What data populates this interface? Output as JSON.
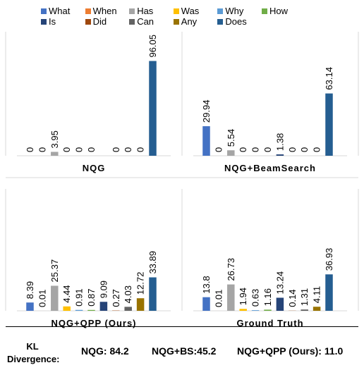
{
  "legend": {
    "items": [
      {
        "name": "What",
        "color": "#4472C4"
      },
      {
        "name": "When",
        "color": "#ED7D31"
      },
      {
        "name": "Has",
        "color": "#A5A5A5"
      },
      {
        "name": "Was",
        "color": "#FFC000"
      },
      {
        "name": "Why",
        "color": "#5B9BD5"
      },
      {
        "name": "How",
        "color": "#70AD47"
      },
      {
        "name": "Is",
        "color": "#264478"
      },
      {
        "name": "Did",
        "color": "#9E480E"
      },
      {
        "name": "Can",
        "color": "#636363"
      },
      {
        "name": "Any",
        "color": "#997300"
      },
      {
        "name": "Does",
        "color": "#255E91"
      }
    ]
  },
  "chart_data": [
    {
      "type": "bar",
      "title": "NQG",
      "categories": [
        "What",
        "When",
        "Has",
        "Was",
        "Why",
        "How",
        "Is",
        "Did",
        "Can",
        "Any",
        "Does"
      ],
      "values": [
        0,
        0,
        3.95,
        0,
        0,
        0,
        0,
        0,
        0,
        0,
        96.05
      ],
      "labels": [
        "0",
        "0",
        "3.95",
        "0",
        "0",
        "0",
        "0",
        "0",
        "0",
        "0",
        "96.05"
      ],
      "hidden_labels": [
        6
      ]
    },
    {
      "type": "bar",
      "title": "NQG+BeamSearch",
      "categories": [
        "What",
        "When",
        "Has",
        "Was",
        "Why",
        "How",
        "Is",
        "Did",
        "Can",
        "Any",
        "Does"
      ],
      "values": [
        29.94,
        0,
        5.54,
        0,
        0,
        0,
        1.38,
        0,
        0,
        0,
        63.14
      ],
      "labels": [
        "29.94",
        "0",
        "5.54",
        "0",
        "0",
        "0",
        "1.38",
        "0",
        "0",
        "0",
        "63.14"
      ],
      "hidden_labels": []
    },
    {
      "type": "bar",
      "title": "NQG+QPP (Ours)",
      "categories": [
        "What",
        "When",
        "Has",
        "Was",
        "Why",
        "How",
        "Is",
        "Did",
        "Can",
        "Any",
        "Does"
      ],
      "values": [
        8.39,
        0.01,
        25.37,
        4.44,
        0.91,
        0.87,
        9.09,
        0.27,
        4.03,
        12.72,
        33.89
      ],
      "labels": [
        "8.39",
        "0.01",
        "25.37",
        "4.44",
        "0.91",
        "0.87",
        "9.09",
        "0.27",
        "4.03",
        "12.72",
        "33.89"
      ],
      "hidden_labels": []
    },
    {
      "type": "bar",
      "title": "Ground Truth",
      "categories": [
        "What",
        "When",
        "Has",
        "Was",
        "Why",
        "How",
        "Is",
        "Did",
        "Can",
        "Any",
        "Does"
      ],
      "values": [
        13.8,
        0.01,
        26.73,
        1.94,
        0.63,
        1.16,
        13.24,
        0.14,
        1.31,
        4.11,
        36.93
      ],
      "labels": [
        "13.8",
        "0.01",
        "26.73",
        "1.94",
        "0.63",
        "1.16",
        "13.24",
        "0.14",
        "1.31",
        "4.11",
        "36.93"
      ],
      "hidden_labels": []
    }
  ],
  "footer": {
    "kl_label": "KL Divergence:",
    "values": [
      "NQG: 84.2",
      "NQG+BS:45.2",
      "NQG+QPP (Ours): 11.0"
    ]
  }
}
